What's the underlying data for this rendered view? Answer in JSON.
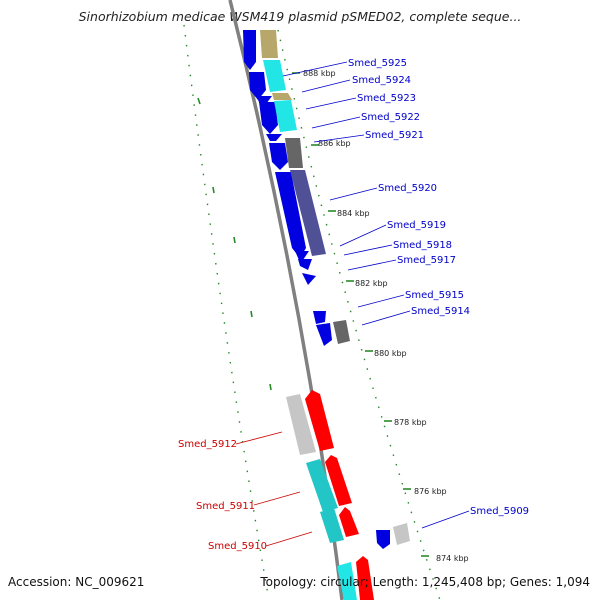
{
  "title": "Sinorhizobium medicae WSM419 plasmid pSMED02, complete seque...",
  "accession": "Accession: NC_009621",
  "summary": "Topology: circular; Length: 1,245,408 bp; Genes: 1,094",
  "colors": {
    "forward_label": "#0000cc",
    "reverse_label": "#cc0000",
    "tick_green": "#2a8a2a",
    "backbone": "#808080"
  },
  "kbp_labels": [
    "888 kbp",
    "886 kbp",
    "884 kbp",
    "882 kbp",
    "880 kbp",
    "878 kbp",
    "876 kbp",
    "874 kbp"
  ],
  "gene_labels": [
    {
      "name": "Smed_5925",
      "strand": "forward"
    },
    {
      "name": "Smed_5924",
      "strand": "forward"
    },
    {
      "name": "Smed_5923",
      "strand": "forward"
    },
    {
      "name": "Smed_5922",
      "strand": "forward"
    },
    {
      "name": "Smed_5921",
      "strand": "forward"
    },
    {
      "name": "Smed_5920",
      "strand": "forward"
    },
    {
      "name": "Smed_5919",
      "strand": "forward"
    },
    {
      "name": "Smed_5918",
      "strand": "forward"
    },
    {
      "name": "Smed_5917",
      "strand": "forward"
    },
    {
      "name": "Smed_5915",
      "strand": "forward"
    },
    {
      "name": "Smed_5914",
      "strand": "forward"
    },
    {
      "name": "Smed_5912",
      "strand": "reverse"
    },
    {
      "name": "Smed_5911",
      "strand": "reverse"
    },
    {
      "name": "Smed_5910",
      "strand": "reverse"
    },
    {
      "name": "Smed_5909",
      "strand": "forward"
    }
  ]
}
